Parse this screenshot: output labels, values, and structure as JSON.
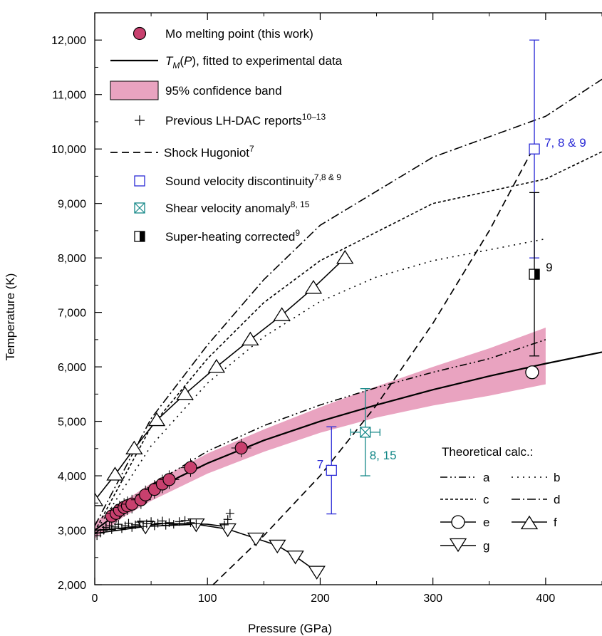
{
  "chart_data": {
    "type": "line",
    "xlabel": "Pressure (GPa)",
    "ylabel": "Temperature (K)",
    "xlim": [
      0,
      450
    ],
    "ylim": [
      2000,
      12500
    ],
    "x_ticks": [
      0,
      100,
      200,
      300,
      400
    ],
    "x_tick_labels": [
      "0",
      "100",
      "200",
      "300",
      "400"
    ],
    "y_ticks": [
      2000,
      3000,
      4000,
      5000,
      6000,
      7000,
      8000,
      9000,
      10000,
      11000,
      12000
    ],
    "y_tick_labels": [
      "2,000",
      "3,000",
      "4,000",
      "5,000",
      "6,000",
      "7,000",
      "8,000",
      "9,000",
      "10,000",
      "11,000",
      "12,000"
    ],
    "legend": {
      "placement": "top-left",
      "entries": [
        {
          "label": "Mo melting point (this work)"
        },
        {
          "label_parts": [
            "T",
            "M",
            "(",
            "P",
            "), fitted to experimental data"
          ]
        },
        {
          "label": "95% confidence band"
        },
        {
          "label": "Previous LH-DAC reports",
          "sup": "10–13"
        },
        {
          "label": "Shock Hugoniot",
          "sup": "7"
        },
        {
          "label": "Sound velocity discontinuity",
          "sup": "7,8 & 9"
        },
        {
          "label": "Shear velocity anomaly",
          "sup": "8, 15"
        },
        {
          "label": "Super-heating corrected",
          "sup": "9"
        }
      ]
    },
    "theory_legend": {
      "title": "Theoretical calc.:",
      "placement": "bottom-right",
      "labels": [
        "a",
        "b",
        "c",
        "d",
        "e",
        "f",
        "g"
      ]
    },
    "colors": {
      "this_work": "#c8406e",
      "band": "#e9a3c0",
      "sound_velocity": "#2a2ad6",
      "shear_velocity": "#138787",
      "black": "#000000"
    },
    "this_work_points": [
      {
        "x": 15,
        "y": 3260
      },
      {
        "x": 19,
        "y": 3310
      },
      {
        "x": 22,
        "y": 3370
      },
      {
        "x": 26,
        "y": 3420
      },
      {
        "x": 29,
        "y": 3450
      },
      {
        "x": 33,
        "y": 3480
      },
      {
        "x": 41,
        "y": 3560
      },
      {
        "x": 45,
        "y": 3650
      },
      {
        "x": 53,
        "y": 3750
      },
      {
        "x": 60,
        "y": 3850
      },
      {
        "x": 66,
        "y": 3930
      },
      {
        "x": 85,
        "y": 4150
      },
      {
        "x": 130,
        "y": 4510
      }
    ],
    "fit_line": [
      [
        0,
        3000
      ],
      [
        25,
        3380
      ],
      [
        50,
        3700
      ],
      [
        75,
        3980
      ],
      [
        100,
        4230
      ],
      [
        150,
        4650
      ],
      [
        200,
        5000
      ],
      [
        250,
        5300
      ],
      [
        300,
        5580
      ],
      [
        350,
        5830
      ],
      [
        400,
        6060
      ],
      [
        450,
        6270
      ]
    ],
    "confidence_band": {
      "upper": [
        [
          0,
          3150
        ],
        [
          25,
          3520
        ],
        [
          50,
          3860
        ],
        [
          100,
          4410
        ],
        [
          150,
          4850
        ],
        [
          200,
          5260
        ],
        [
          250,
          5640
        ],
        [
          300,
          6000
        ],
        [
          350,
          6340
        ],
        [
          400,
          6720
        ]
      ],
      "lower": [
        [
          0,
          2850
        ],
        [
          25,
          3240
        ],
        [
          50,
          3540
        ],
        [
          100,
          4040
        ],
        [
          150,
          4440
        ],
        [
          200,
          4790
        ],
        [
          250,
          5070
        ],
        [
          300,
          5290
        ],
        [
          350,
          5470
        ],
        [
          400,
          5680
        ]
      ]
    },
    "lh_dac_points": [
      [
        2,
        2900
      ],
      [
        5,
        2950
      ],
      [
        8,
        3000
      ],
      [
        10,
        3050
      ],
      [
        13,
        3080
      ],
      [
        15,
        3010
      ],
      [
        18,
        3060
      ],
      [
        21,
        3110
      ],
      [
        24,
        3030
      ],
      [
        27,
        3080
      ],
      [
        30,
        3130
      ],
      [
        33,
        3050
      ],
      [
        36,
        3100
      ],
      [
        40,
        3150
      ],
      [
        43,
        3070
      ],
      [
        46,
        3120
      ],
      [
        50,
        3160
      ],
      [
        53,
        3080
      ],
      [
        56,
        3130
      ],
      [
        60,
        3170
      ],
      [
        63,
        3090
      ],
      [
        66,
        3140
      ],
      [
        70,
        3110
      ],
      [
        75,
        3160
      ],
      [
        80,
        3180
      ],
      [
        85,
        3140
      ],
      [
        90,
        3120
      ],
      [
        115,
        3100
      ],
      [
        118,
        3200
      ],
      [
        120,
        3310
      ]
    ],
    "shock_hugoniot": [
      [
        105,
        2000
      ],
      [
        150,
        2900
      ],
      [
        200,
        4000
      ],
      [
        250,
        5300
      ],
      [
        300,
        6800
      ],
      [
        350,
        8500
      ],
      [
        390,
        10050
      ]
    ],
    "sound_velocity": [
      {
        "x": 210,
        "y": 4100,
        "yerr_low": 3300,
        "yerr_high": 4900,
        "label": "7"
      },
      {
        "x": 390,
        "y": 10000,
        "yerr_low": 8000,
        "yerr_high": 12000,
        "label": "7, 8 & 9"
      }
    ],
    "shear_velocity": {
      "x": 240,
      "y": 4800,
      "xerr": 13,
      "yerr_low": 4000,
      "yerr_high": 5600,
      "label": "8, 15"
    },
    "superheating": {
      "x": 390,
      "y": 7700,
      "yerr_low": 6200,
      "yerr_high": 9200,
      "label": "9"
    },
    "theory": {
      "a": [
        [
          0,
          2930
        ],
        [
          50,
          3830
        ],
        [
          100,
          4450
        ],
        [
          150,
          4920
        ],
        [
          200,
          5300
        ],
        [
          250,
          5620
        ],
        [
          300,
          5900
        ],
        [
          350,
          6150
        ],
        [
          400,
          6500
        ]
      ],
      "b": [
        [
          0,
          2950
        ],
        [
          50,
          4550
        ],
        [
          100,
          5700
        ],
        [
          150,
          6550
        ],
        [
          200,
          7200
        ],
        [
          250,
          7650
        ],
        [
          300,
          7950
        ],
        [
          350,
          8150
        ],
        [
          400,
          8350
        ]
      ],
      "c": [
        [
          0,
          2980
        ],
        [
          50,
          4900
        ],
        [
          100,
          6150
        ],
        [
          150,
          7180
        ],
        [
          200,
          7950
        ],
        [
          300,
          9000
        ],
        [
          400,
          9450
        ],
        [
          450,
          9950
        ]
      ],
      "d": [
        [
          0,
          3080
        ],
        [
          50,
          5050
        ],
        [
          100,
          6400
        ],
        [
          150,
          7600
        ],
        [
          200,
          8600
        ],
        [
          300,
          9850
        ],
        [
          400,
          10600
        ],
        [
          450,
          11280
        ]
      ],
      "e": {
        "line": [
          [
            0,
            3000
          ],
          [
            20,
            3030
          ],
          [
            40,
            3080
          ],
          [
            60,
            3120
          ],
          [
            80,
            3120
          ],
          [
            100,
            3110
          ],
          [
            115,
            3070
          ]
        ],
        "marker": [
          [
            388,
            5900
          ]
        ]
      },
      "f": [
        [
          0,
          3550
        ],
        [
          18,
          4020
        ],
        [
          35,
          4500
        ],
        [
          55,
          5020
        ],
        [
          80,
          5500
        ],
        [
          108,
          6000
        ],
        [
          138,
          6500
        ],
        [
          166,
          6950
        ],
        [
          194,
          7450
        ],
        [
          222,
          8000
        ]
      ],
      "g": [
        [
          0,
          2940
        ],
        [
          45,
          3070
        ],
        [
          90,
          3110
        ],
        [
          118,
          3020
        ],
        [
          143,
          2850
        ],
        [
          162,
          2720
        ],
        [
          178,
          2520
        ],
        [
          197,
          2240
        ]
      ]
    }
  }
}
